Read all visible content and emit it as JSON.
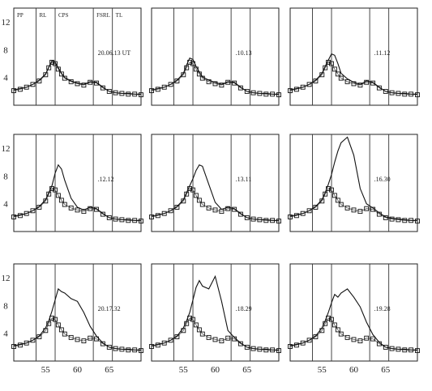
{
  "chart_data": {
    "type": "line",
    "layout": "3x3 small multiples",
    "y_ticks": [
      4,
      8,
      12
    ],
    "x_ticks": [
      55,
      60,
      65
    ],
    "xlim": [
      50,
      70
    ],
    "ylim": [
      0,
      14
    ],
    "boundaries": [
      53.5,
      56.5,
      62.5,
      65.5
    ],
    "zone_labels": [
      "PP",
      "RL",
      "CPS",
      "FSRL",
      "TL"
    ],
    "grid": false,
    "legend": "none",
    "panels": [
      {
        "label": "20.06.13 UT",
        "x": [
          50,
          51,
          52,
          53,
          54,
          55,
          55.5,
          56,
          56.5,
          57,
          57.5,
          58,
          59,
          60,
          61,
          62,
          63,
          64,
          65,
          66,
          67,
          68,
          69,
          70
        ],
        "observed": [
          2.2,
          2.4,
          2.6,
          3.0,
          3.6,
          4.5,
          5.5,
          6.4,
          6.2,
          5.4,
          4.6,
          4.0,
          3.5,
          3.2,
          3.0,
          3.4,
          3.3,
          2.6,
          2.0,
          1.8,
          1.7,
          1.7,
          1.6,
          1.6
        ],
        "model": [
          2.1,
          2.3,
          2.6,
          3.0,
          3.5,
          4.4,
          5.4,
          6.2,
          6.0,
          5.2,
          4.5,
          3.9,
          3.4,
          3.1,
          2.9,
          3.3,
          3.2,
          2.5,
          2.0,
          1.8,
          1.7,
          1.6,
          1.6,
          1.5
        ]
      },
      {
        "label": ".10.13",
        "x": [
          50,
          51,
          52,
          53,
          54,
          55,
          55.5,
          56,
          56.5,
          57,
          57.5,
          58,
          59,
          60,
          61,
          62,
          63,
          64,
          65,
          66,
          67,
          68,
          69,
          70
        ],
        "observed": [
          2.2,
          2.4,
          2.6,
          3.0,
          3.6,
          4.6,
          5.8,
          6.8,
          6.6,
          5.6,
          4.8,
          4.1,
          3.6,
          3.3,
          3.0,
          3.4,
          3.3,
          2.6,
          2.0,
          1.8,
          1.7,
          1.7,
          1.6,
          1.6
        ],
        "model": [
          2.1,
          2.3,
          2.6,
          3.0,
          3.5,
          4.4,
          5.4,
          6.2,
          6.0,
          5.2,
          4.5,
          3.9,
          3.4,
          3.1,
          2.9,
          3.3,
          3.2,
          2.5,
          2.0,
          1.8,
          1.7,
          1.6,
          1.6,
          1.5
        ]
      },
      {
        "label": ".11.12",
        "x": [
          50,
          51,
          52,
          53,
          54,
          55,
          55.5,
          56,
          56.5,
          57,
          57.5,
          58,
          59,
          60,
          61,
          62,
          63,
          64,
          65,
          66,
          67,
          68,
          69,
          70
        ],
        "observed": [
          2.2,
          2.4,
          2.6,
          3.0,
          3.6,
          4.6,
          5.6,
          6.5,
          7.4,
          7.2,
          6.0,
          4.6,
          3.8,
          3.3,
          3.0,
          3.5,
          3.3,
          2.6,
          2.0,
          1.8,
          1.7,
          1.7,
          1.6,
          1.6
        ],
        "model": [
          2.1,
          2.3,
          2.6,
          3.0,
          3.5,
          4.4,
          5.4,
          6.2,
          6.0,
          5.2,
          4.5,
          3.9,
          3.4,
          3.1,
          2.9,
          3.3,
          3.2,
          2.5,
          2.0,
          1.8,
          1.7,
          1.6,
          1.6,
          1.5
        ]
      },
      {
        "label": ".12.12",
        "x": [
          50,
          51,
          52,
          53,
          54,
          55,
          55.5,
          56,
          56.5,
          57,
          57.5,
          58,
          59,
          60,
          61,
          62,
          63,
          64,
          65,
          66,
          67,
          68,
          69,
          70
        ],
        "observed": [
          2.2,
          2.4,
          2.6,
          3.0,
          3.6,
          4.6,
          5.6,
          6.6,
          8.4,
          9.6,
          9.0,
          7.4,
          4.8,
          3.5,
          3.1,
          3.5,
          3.3,
          2.6,
          2.0,
          1.8,
          1.7,
          1.7,
          1.6,
          1.6
        ],
        "model": [
          2.1,
          2.3,
          2.6,
          3.0,
          3.5,
          4.4,
          5.4,
          6.2,
          6.0,
          5.2,
          4.5,
          3.9,
          3.4,
          3.1,
          2.9,
          3.3,
          3.2,
          2.5,
          2.0,
          1.8,
          1.7,
          1.6,
          1.6,
          1.5
        ]
      },
      {
        "label": ".13.11",
        "x": [
          50,
          51,
          52,
          53,
          54,
          55,
          55.5,
          56,
          56.5,
          57,
          57.5,
          58,
          59,
          60,
          61,
          62,
          63,
          64,
          65,
          66,
          67,
          68,
          69,
          70
        ],
        "observed": [
          2.2,
          2.4,
          2.6,
          3.0,
          3.6,
          4.6,
          5.6,
          6.6,
          7.6,
          8.8,
          9.6,
          9.4,
          6.8,
          4.2,
          3.2,
          3.5,
          3.3,
          2.6,
          2.0,
          1.8,
          1.7,
          1.7,
          1.6,
          1.6
        ],
        "model": [
          2.1,
          2.3,
          2.6,
          3.0,
          3.5,
          4.4,
          5.4,
          6.2,
          6.0,
          5.2,
          4.5,
          3.9,
          3.4,
          3.1,
          2.9,
          3.3,
          3.2,
          2.5,
          2.0,
          1.8,
          1.7,
          1.6,
          1.6,
          1.5
        ]
      },
      {
        "label": ".16.30",
        "x": [
          50,
          51,
          52,
          53,
          54,
          55,
          55.5,
          56,
          56.5,
          57,
          57.5,
          58,
          59,
          60,
          61,
          62,
          63,
          64,
          65,
          66,
          67,
          68,
          69,
          70
        ],
        "observed": [
          2.2,
          2.4,
          2.6,
          3.0,
          3.6,
          4.6,
          5.6,
          6.8,
          8.2,
          10.0,
          11.6,
          12.8,
          13.6,
          11.0,
          6.2,
          4.0,
          3.4,
          2.7,
          2.1,
          1.9,
          1.8,
          1.7,
          1.6,
          1.6
        ],
        "model": [
          2.1,
          2.3,
          2.6,
          3.0,
          3.5,
          4.4,
          5.4,
          6.2,
          6.0,
          5.2,
          4.5,
          3.9,
          3.4,
          3.1,
          2.9,
          3.3,
          3.2,
          2.5,
          2.0,
          1.8,
          1.7,
          1.6,
          1.6,
          1.5
        ]
      },
      {
        "label": "20.17.32",
        "x": [
          50,
          51,
          52,
          53,
          54,
          55,
          55.5,
          56,
          56.5,
          57,
          57.5,
          58,
          59,
          60,
          61,
          62,
          63,
          64,
          65,
          66,
          67,
          68,
          69,
          70
        ],
        "observed": [
          2.2,
          2.4,
          2.6,
          3.0,
          3.6,
          4.8,
          5.8,
          7.2,
          8.8,
          10.4,
          10.0,
          9.8,
          9.0,
          8.6,
          7.0,
          5.0,
          3.6,
          2.6,
          2.0,
          1.8,
          1.7,
          1.7,
          1.6,
          1.6
        ],
        "model": [
          2.1,
          2.3,
          2.6,
          3.0,
          3.5,
          4.4,
          5.4,
          6.2,
          6.0,
          5.2,
          4.5,
          3.9,
          3.4,
          3.1,
          2.9,
          3.3,
          3.2,
          2.5,
          2.0,
          1.8,
          1.7,
          1.6,
          1.6,
          1.5
        ]
      },
      {
        "label": ".18.29",
        "x": [
          50,
          51,
          52,
          53,
          54,
          55,
          55.5,
          56,
          56.5,
          57,
          57.5,
          58,
          59,
          60,
          61,
          62,
          63,
          64,
          65,
          66,
          67,
          68,
          69,
          70
        ],
        "observed": [
          2.2,
          2.4,
          2.6,
          3.0,
          3.6,
          4.8,
          5.8,
          7.0,
          8.8,
          10.6,
          11.6,
          10.8,
          10.4,
          12.2,
          8.6,
          4.4,
          3.4,
          2.6,
          2.0,
          1.8,
          1.7,
          1.7,
          1.6,
          1.6
        ],
        "model": [
          2.1,
          2.3,
          2.6,
          3.0,
          3.5,
          4.4,
          5.4,
          6.2,
          6.0,
          5.2,
          4.5,
          3.9,
          3.4,
          3.1,
          2.9,
          3.3,
          3.2,
          2.5,
          2.0,
          1.8,
          1.7,
          1.6,
          1.6,
          1.5
        ]
      },
      {
        "label": ".19.28",
        "x": [
          50,
          51,
          52,
          53,
          54,
          55,
          55.5,
          56,
          56.5,
          57,
          57.5,
          58,
          59,
          60,
          61,
          62,
          63,
          64,
          65,
          66,
          67,
          68,
          69,
          70
        ],
        "observed": [
          2.2,
          2.4,
          2.6,
          3.0,
          3.6,
          4.8,
          5.8,
          7.0,
          8.4,
          9.6,
          9.2,
          9.8,
          10.4,
          9.2,
          7.8,
          5.6,
          3.8,
          2.7,
          2.0,
          1.8,
          1.7,
          1.7,
          1.6,
          1.6
        ],
        "model": [
          2.1,
          2.3,
          2.6,
          3.0,
          3.5,
          4.4,
          5.4,
          6.2,
          6.0,
          5.2,
          4.5,
          3.9,
          3.4,
          3.1,
          2.9,
          3.3,
          3.2,
          2.5,
          2.0,
          1.8,
          1.7,
          1.6,
          1.6,
          1.5
        ]
      }
    ]
  }
}
